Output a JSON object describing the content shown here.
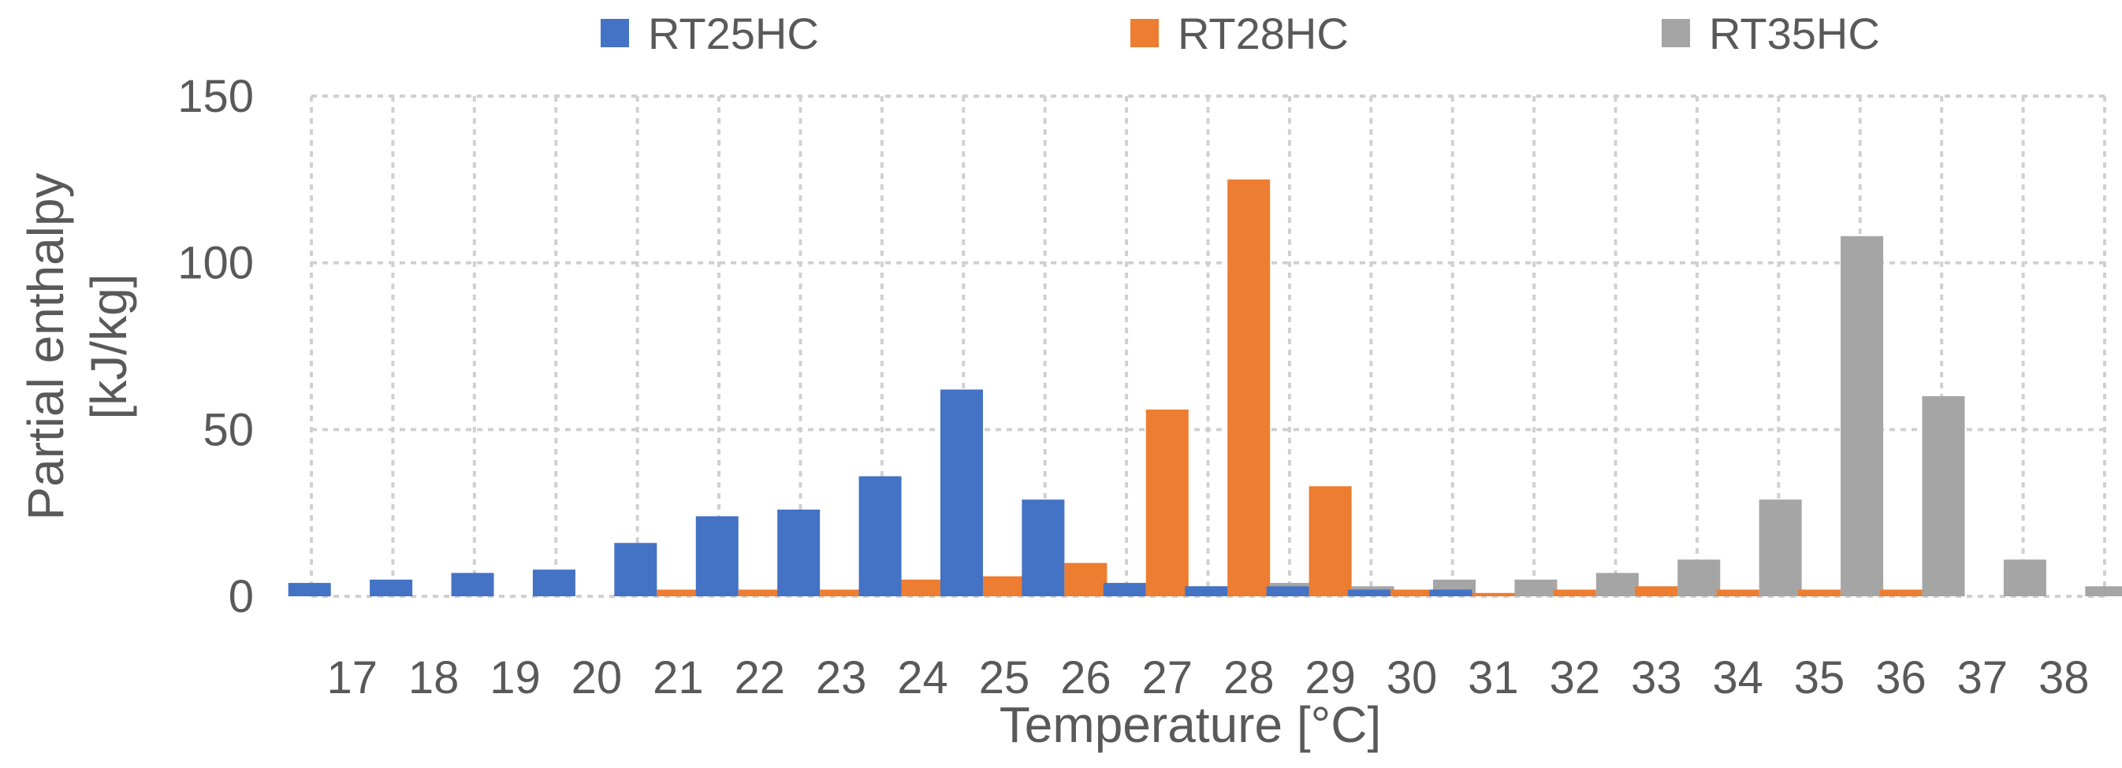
{
  "chart_data": {
    "type": "bar",
    "title": "",
    "xlabel": "Temperature [°C]",
    "ylabel": "Partial enthalpy [kJ/kg]",
    "ylabel_lines": [
      "Partial enthalpy",
      "[kJ/kg]"
    ],
    "ylim": [
      0,
      150
    ],
    "yticks": [
      "0",
      "50",
      "100",
      "150"
    ],
    "ytick_values": [
      0,
      50,
      100,
      150
    ],
    "grid": true,
    "legend_position": "top",
    "categories": [
      "17",
      "18",
      "19",
      "20",
      "21",
      "22",
      "23",
      "24",
      "25",
      "26",
      "27",
      "28",
      "29",
      "30",
      "31",
      "32",
      "33",
      "34",
      "35",
      "36",
      "37",
      "38"
    ],
    "series": [
      {
        "name": "RT25HC",
        "color": "#4472C4",
        "values": [
          4,
          5,
          7,
          8,
          16,
          24,
          26,
          36,
          62,
          29,
          4,
          3,
          3,
          2,
          2,
          0,
          0,
          0,
          0,
          0,
          0,
          0
        ]
      },
      {
        "name": "RT28HC",
        "color": "#ED7D31",
        "values": [
          0,
          0,
          0,
          0,
          2,
          2,
          2,
          5,
          6,
          10,
          56,
          125,
          33,
          2,
          1,
          2,
          3,
          2,
          2,
          2,
          0,
          0
        ]
      },
      {
        "name": "RT35HC",
        "color": "#A5A5A5",
        "values": [
          0,
          0,
          0,
          0,
          0,
          0,
          0,
          0,
          0,
          0,
          3,
          4,
          3,
          5,
          5,
          7,
          11,
          29,
          108,
          60,
          11,
          3
        ]
      }
    ]
  }
}
